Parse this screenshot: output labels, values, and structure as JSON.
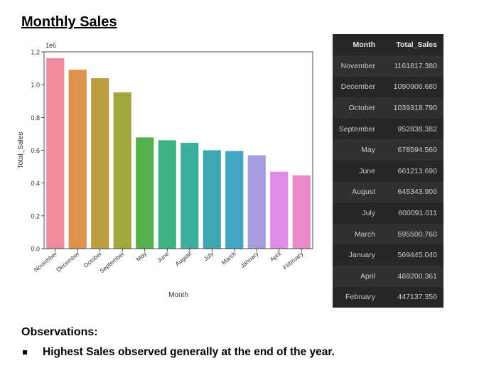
{
  "title": "Monthly Sales",
  "chart_data": {
    "type": "bar",
    "categories": [
      "November",
      "December",
      "October",
      "September",
      "May",
      "June",
      "August",
      "July",
      "March",
      "January",
      "April",
      "February"
    ],
    "values": [
      1161817.38,
      1090906.68,
      1039318.79,
      952838.382,
      678594.56,
      661213.69,
      645343.9,
      600091.011,
      595500.76,
      569445.04,
      469200.361,
      447137.35
    ],
    "colors": [
      "#ee8c9d",
      "#dd924e",
      "#bd9d3d",
      "#a3a63c",
      "#55b14f",
      "#3db384",
      "#3dae9e",
      "#3ea8b2",
      "#43a7c4",
      "#a99be0",
      "#e08be8",
      "#e88bc6"
    ],
    "xlabel": "Month",
    "ylabel": "Total_Sales",
    "ylim": [
      0,
      1200000
    ],
    "yticks": [
      "0.0",
      "0.2",
      "0.4",
      "0.6",
      "0.8",
      "1.0",
      "1.2"
    ],
    "y_offset_label": "1e6"
  },
  "table": {
    "headers": [
      "Month",
      "Total_Sales"
    ],
    "rows": [
      [
        "November",
        "1161817.380"
      ],
      [
        "December",
        "1090906.680"
      ],
      [
        "October",
        "1039318.790"
      ],
      [
        "September",
        "952838.382"
      ],
      [
        "May",
        "678594.560"
      ],
      [
        "June",
        "661213.690"
      ],
      [
        "August",
        "645343.900"
      ],
      [
        "July",
        "600091.011"
      ],
      [
        "March",
        "595500.760"
      ],
      [
        "January",
        "569445.040"
      ],
      [
        "April",
        "469200.361"
      ],
      [
        "February",
        "447137.350"
      ]
    ]
  },
  "observations": {
    "title": "Observations:",
    "items": [
      "Highest Sales observed generally at the end of the year."
    ]
  }
}
